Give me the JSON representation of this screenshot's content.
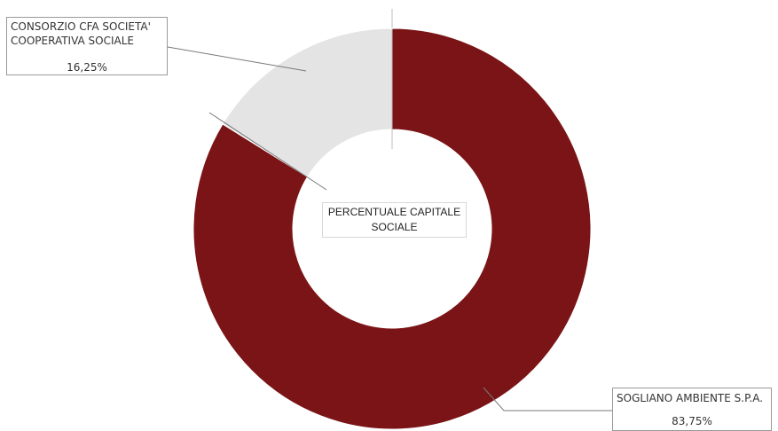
{
  "chart_data": {
    "type": "pie",
    "donut": true,
    "center_label_line1": "PERCENTUALE CAPITALE",
    "center_label_line2": "SOCIALE",
    "slices": [
      {
        "label_line1": "SOGLIANO AMBIENTE S.P.A.",
        "label_line2": "",
        "value": 83.75,
        "value_label": "83,75%",
        "color": "#7a1416"
      },
      {
        "label_line1": "CONSORZIO CFA SOCIETA'",
        "label_line2": "COOPERATIVA SOCIALE",
        "value": 16.25,
        "value_label": "16,25%",
        "color": "#e4e4e4"
      }
    ]
  }
}
